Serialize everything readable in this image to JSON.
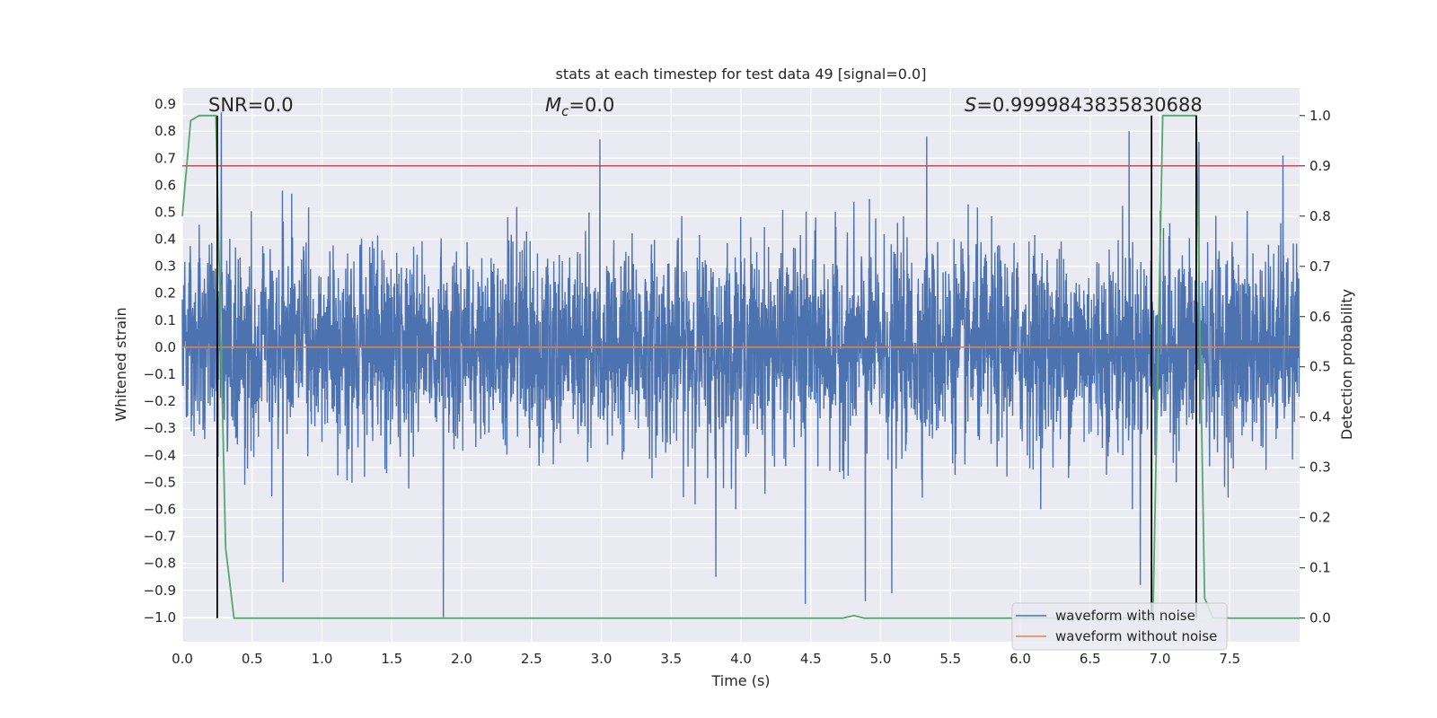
{
  "chart_data": {
    "type": "line",
    "title": "stats at each timestep for test data 49 [signal=0.0]",
    "xlabel": "Time (s)",
    "ylabel": "Whitened strain",
    "y2label": "Detection probability",
    "xlim": [
      0.0,
      8.0
    ],
    "ylim": [
      -1.09,
      0.96
    ],
    "y2lim": [
      -0.047,
      1.055
    ],
    "xticks": [
      0.0,
      0.5,
      1.0,
      1.5,
      2.0,
      2.5,
      3.0,
      3.5,
      4.0,
      4.5,
      5.0,
      5.5,
      6.0,
      6.5,
      7.0,
      7.5
    ],
    "xtick_labels": [
      "0.0",
      "0.5",
      "1.0",
      "1.5",
      "2.0",
      "2.5",
      "3.0",
      "3.5",
      "4.0",
      "4.5",
      "5.0",
      "5.5",
      "6.0",
      "6.5",
      "7.0",
      "7.5"
    ],
    "yticks": [
      0.9,
      0.8,
      0.7,
      0.6,
      0.5,
      0.4,
      0.3,
      0.2,
      0.1,
      0.0,
      -0.1,
      -0.2,
      -0.3,
      -0.4,
      -0.5,
      -0.6,
      -0.7,
      -0.8,
      -0.9,
      -1.0
    ],
    "ytick_labels": [
      "0.9",
      "0.8",
      "0.7",
      "0.6",
      "0.5",
      "0.4",
      "0.3",
      "0.2",
      "0.1",
      "0.0",
      "−0.1",
      "−0.2",
      "−0.3",
      "−0.4",
      "−0.5",
      "−0.6",
      "−0.7",
      "−0.8",
      "−0.9",
      "−1.0"
    ],
    "y2ticks": [
      0.0,
      0.1,
      0.2,
      0.3,
      0.4,
      0.5,
      0.6,
      0.7,
      0.8,
      0.9,
      1.0
    ],
    "y2tick_labels": [
      "0.0",
      "0.1",
      "0.2",
      "0.3",
      "0.4",
      "0.5",
      "0.6",
      "0.7",
      "0.8",
      "0.9",
      "1.0"
    ],
    "annotations": {
      "snr": "SNR=0.0",
      "mc_symbol": "M",
      "mc_subscript": "c",
      "mc_value": "=0.0",
      "s_symbol": "S",
      "s_value": "=0.9999843835830688"
    },
    "series": [
      {
        "name": "waveform with noise",
        "axis": "left",
        "color": "#4c72b0",
        "description": "whitened noisy strain, sampled densely over 0–8 s, amplitude roughly ±0.5 with peaks near ±0.9",
        "sample_rate_hz": 512,
        "noise_std": 0.185,
        "peaks": [
          [
            0.28,
            0.87
          ],
          [
            0.72,
            -0.87
          ],
          [
            1.87,
            -1.0
          ],
          [
            2.99,
            0.77
          ],
          [
            3.82,
            -0.85
          ],
          [
            4.46,
            -0.95
          ],
          [
            4.89,
            -0.94
          ],
          [
            5.08,
            -0.91
          ],
          [
            5.33,
            0.78
          ],
          [
            6.78,
            0.8
          ],
          [
            6.86,
            -0.88
          ],
          [
            7.28,
            0.76
          ],
          [
            7.88,
            0.71
          ]
        ]
      },
      {
        "name": "waveform without noise",
        "axis": "left",
        "color": "#dd8452",
        "x": [
          0.0,
          8.0
        ],
        "values": [
          0.0,
          0.0
        ]
      },
      {
        "name": "detection probability",
        "axis": "right",
        "color": "#55a868",
        "x": [
          0.0,
          0.06,
          0.12,
          0.24,
          0.31,
          0.37,
          4.73,
          4.81,
          4.88,
          6.95,
          7.02,
          7.26,
          7.32,
          7.38,
          8.0
        ],
        "values": [
          0.8,
          0.99,
          1.0,
          1.0,
          0.14,
          0.0,
          0.0,
          0.005,
          0.0,
          0.0,
          1.0,
          1.0,
          0.04,
          0.0,
          0.0
        ]
      }
    ],
    "hlines": [
      {
        "axis": "right",
        "y": 0.9,
        "color": "#c44e52"
      }
    ],
    "vlines": [
      {
        "x": 0.25,
        "axis": "right",
        "y_from": 0.0,
        "y_to": 1.0,
        "color": "#000000"
      },
      {
        "x": 6.94,
        "axis": "right",
        "y_from": 0.0,
        "y_to": 1.0,
        "color": "#000000"
      },
      {
        "x": 7.26,
        "axis": "right",
        "y_from": 0.0,
        "y_to": 1.0,
        "color": "#000000"
      }
    ],
    "legend": {
      "position": "lower-right",
      "entries": [
        {
          "label": "waveform with noise",
          "color": "#4c72b0"
        },
        {
          "label": "waveform without noise",
          "color": "#dd8452"
        }
      ]
    },
    "grid": true
  }
}
